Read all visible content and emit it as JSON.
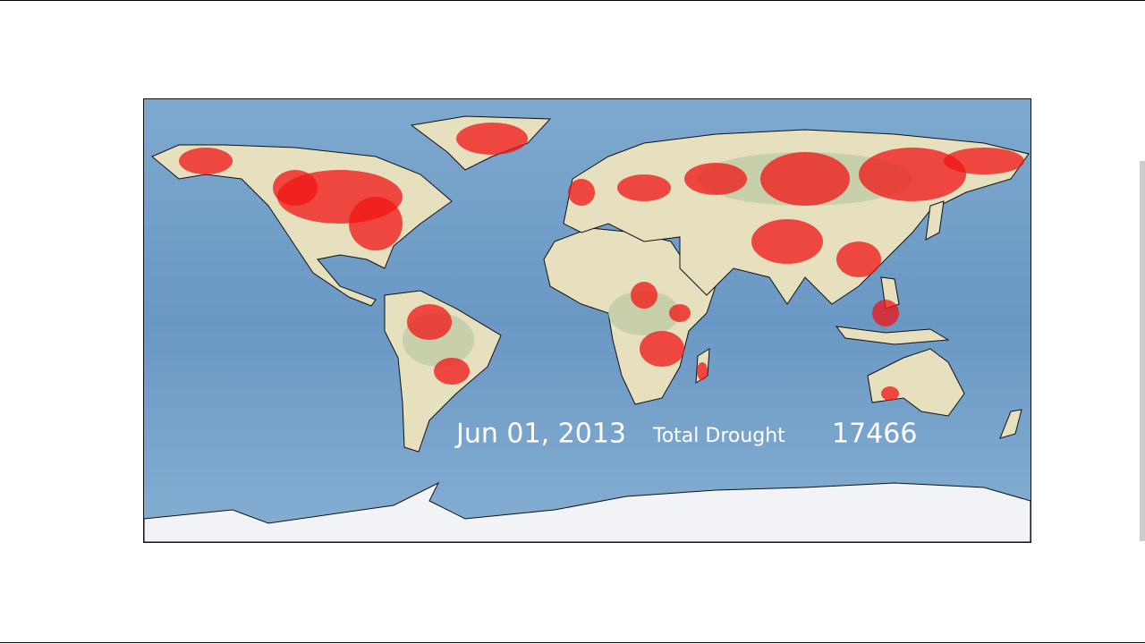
{
  "date": "Jun 01, 2013",
  "metric": {
    "label": "Total Drought",
    "value": 17466
  }
}
